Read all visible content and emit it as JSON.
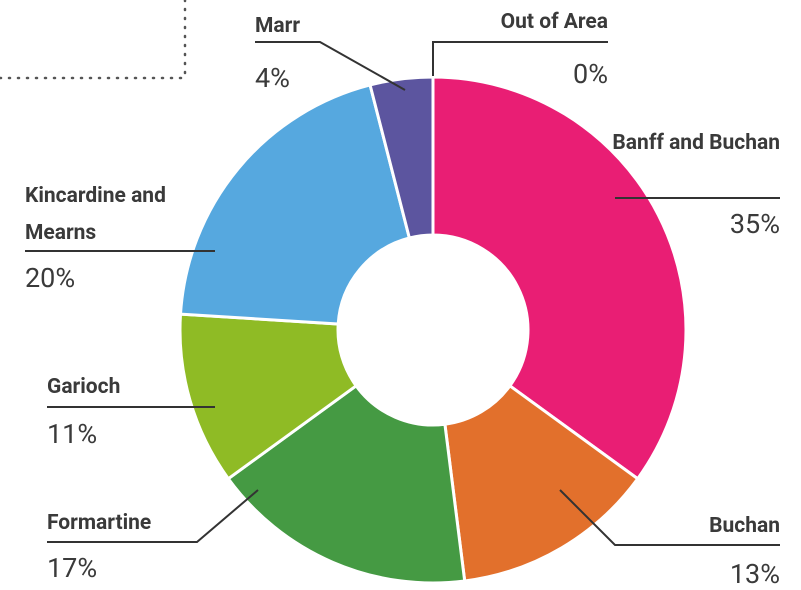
{
  "chart_data": {
    "type": "donut",
    "categories": [
      "Banff and Buchan",
      "Buchan",
      "Formartine",
      "Garioch",
      "Kincardine and Mearns",
      "Marr",
      "Out of Area"
    ],
    "values": [
      35,
      13,
      17,
      11,
      20,
      4,
      0
    ],
    "value_labels": [
      "35%",
      "13%",
      "17%",
      "11%",
      "20%",
      "4%",
      "0%"
    ],
    "colors": [
      "#e91e74",
      "#e2702c",
      "#459a43",
      "#8fbb25",
      "#56a8df",
      "#5c559f",
      "#9e9e9e"
    ]
  }
}
